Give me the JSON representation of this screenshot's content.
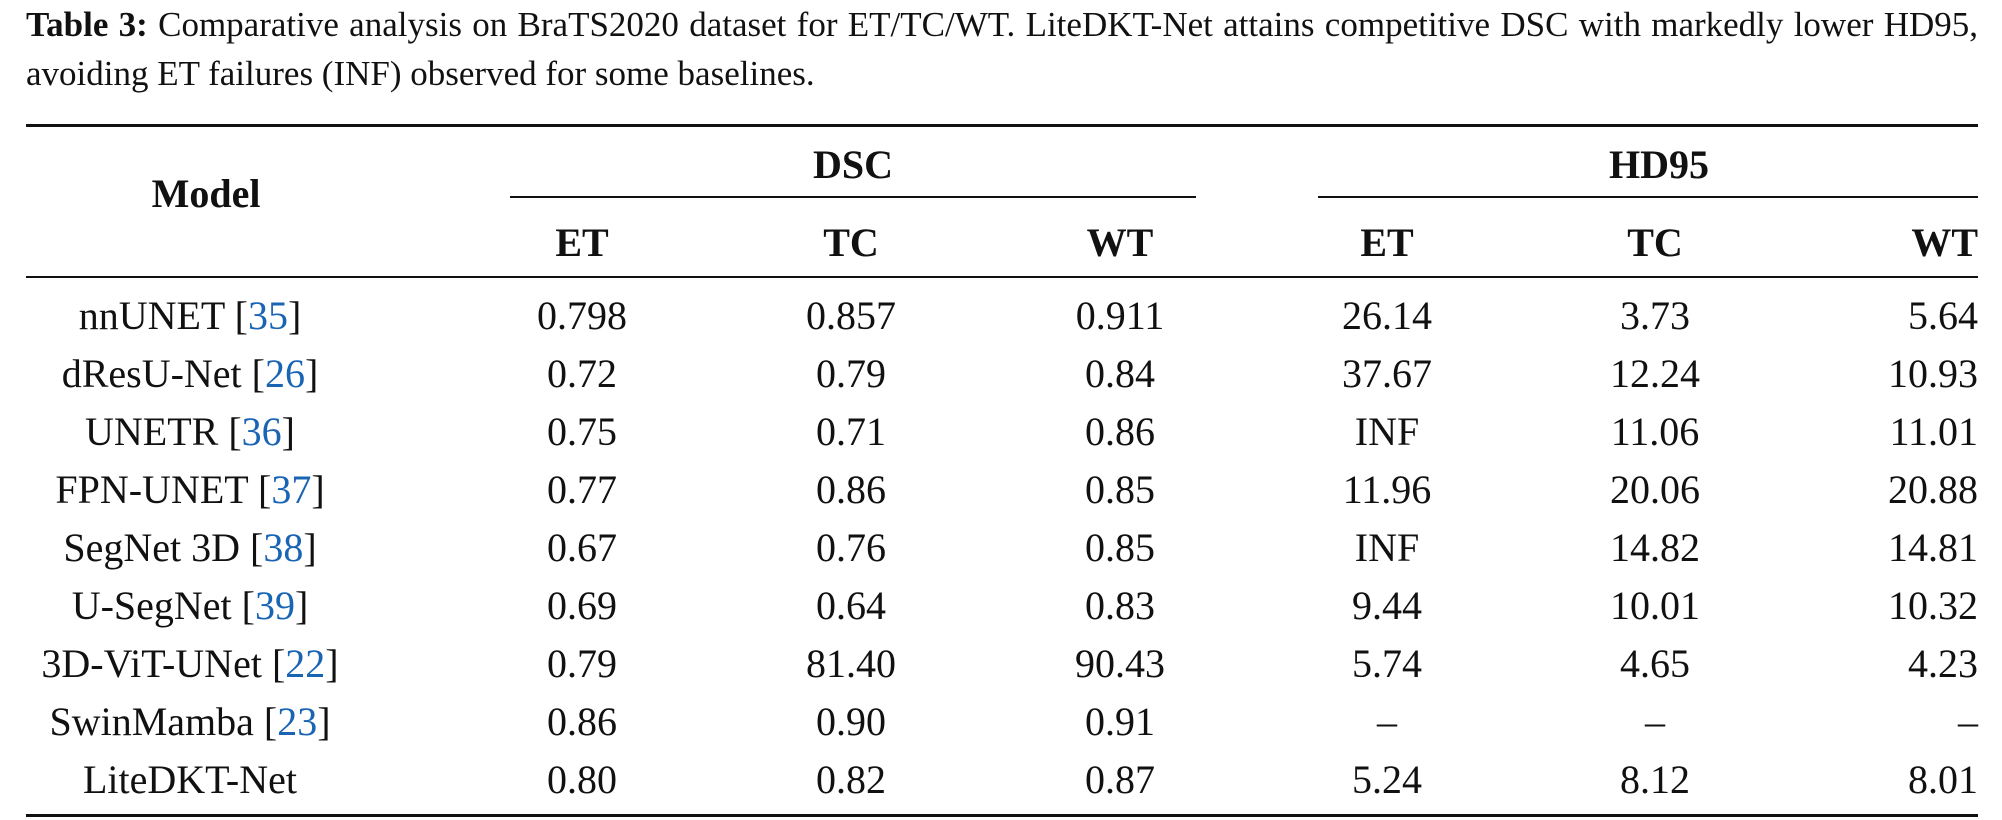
{
  "caption": {
    "label": "Table 3:",
    "text": "Comparative analysis on BraTS2020 dataset for ET/TC/WT. LiteDKT-Net attains competitive DSC with markedly lower HD95, avoiding ET failures (INF) observed for some baselines."
  },
  "header": {
    "model": "Model",
    "dsc": "DSC",
    "hd95": "HD95",
    "sub": [
      "ET",
      "TC",
      "WT",
      "ET",
      "TC",
      "WT"
    ]
  },
  "rows": [
    {
      "name": "nnUNET",
      "ref": "35",
      "vals": [
        "0.798",
        "0.857",
        "0.911",
        "26.14",
        "3.73",
        "5.64"
      ]
    },
    {
      "name": "dResU-Net",
      "ref": "26",
      "vals": [
        "0.72",
        "0.79",
        "0.84",
        "37.67",
        "12.24",
        "10.93"
      ]
    },
    {
      "name": "UNETR",
      "ref": "36",
      "vals": [
        "0.75",
        "0.71",
        "0.86",
        "INF",
        "11.06",
        "11.01"
      ]
    },
    {
      "name": "FPN-UNET",
      "ref": "37",
      "vals": [
        "0.77",
        "0.86",
        "0.85",
        "11.96",
        "20.06",
        "20.88"
      ]
    },
    {
      "name": "SegNet 3D",
      "ref": "38",
      "vals": [
        "0.67",
        "0.76",
        "0.85",
        "INF",
        "14.82",
        "14.81"
      ]
    },
    {
      "name": "U-SegNet",
      "ref": "39",
      "vals": [
        "0.69",
        "0.64",
        "0.83",
        "9.44",
        "10.01",
        "10.32"
      ]
    },
    {
      "name": "3D-ViT-UNet",
      "ref": "22",
      "vals": [
        "0.79",
        "81.40",
        "90.43",
        "5.74",
        "4.65",
        "4.23"
      ]
    },
    {
      "name": "SwinMamba",
      "ref": "23",
      "vals": [
        "0.86",
        "0.90",
        "0.91",
        "–",
        "–",
        "–"
      ]
    },
    {
      "name": "LiteDKT-Net",
      "ref": "",
      "vals": [
        "0.80",
        "0.82",
        "0.87",
        "5.24",
        "8.12",
        "8.01"
      ]
    }
  ]
}
